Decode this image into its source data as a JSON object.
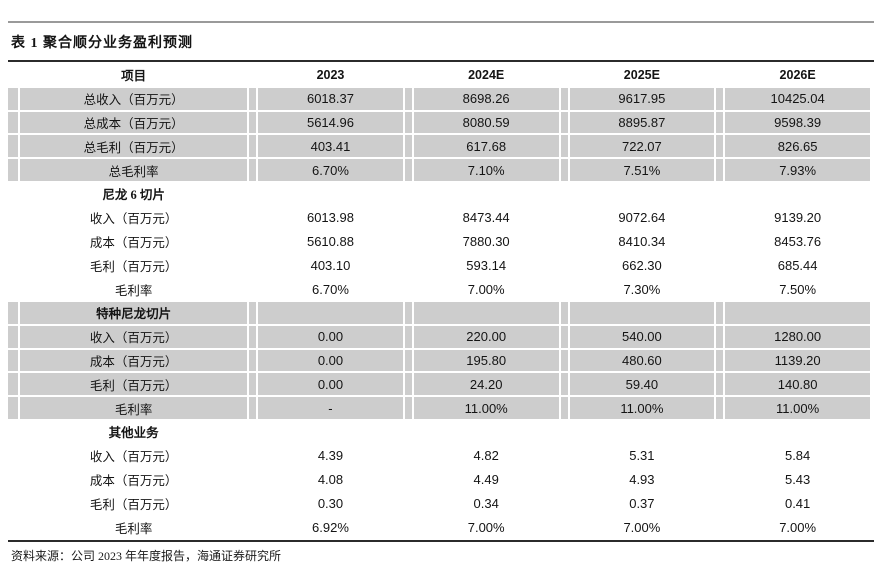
{
  "title": "表 1 聚合顺分业务盈利预测",
  "source_note": "资料来源：公司 2023 年年度报告，海通证券研究所",
  "colors": {
    "row_shade": "#cdcdcd",
    "top_rule": "#9a9a9a",
    "dark_rule": "#2b2b2b"
  },
  "table": {
    "header": {
      "item": "项目",
      "years": [
        "2023",
        "2024E",
        "2025E",
        "2026E"
      ]
    },
    "sections": [
      {
        "name": "",
        "shaded": true,
        "rows": [
          {
            "label": "总收入（百万元）",
            "values": [
              "6018.37",
              "8698.26",
              "9617.95",
              "10425.04"
            ]
          },
          {
            "label": "总成本（百万元）",
            "values": [
              "5614.96",
              "8080.59",
              "8895.87",
              "9598.39"
            ]
          },
          {
            "label": "总毛利（百万元）",
            "values": [
              "403.41",
              "617.68",
              "722.07",
              "826.65"
            ]
          },
          {
            "label": "总毛利率",
            "values": [
              "6.70%",
              "7.10%",
              "7.51%",
              "7.93%"
            ]
          }
        ]
      },
      {
        "name": "尼龙 6 切片",
        "shaded": false,
        "rows": [
          {
            "label": "收入（百万元）",
            "values": [
              "6013.98",
              "8473.44",
              "9072.64",
              "9139.20"
            ]
          },
          {
            "label": "成本（百万元）",
            "values": [
              "5610.88",
              "7880.30",
              "8410.34",
              "8453.76"
            ]
          },
          {
            "label": "毛利（百万元）",
            "values": [
              "403.10",
              "593.14",
              "662.30",
              "685.44"
            ]
          },
          {
            "label": "毛利率",
            "values": [
              "6.70%",
              "7.00%",
              "7.30%",
              "7.50%"
            ]
          }
        ]
      },
      {
        "name": "特种尼龙切片",
        "shaded": true,
        "rows": [
          {
            "label": "收入（百万元）",
            "values": [
              "0.00",
              "220.00",
              "540.00",
              "1280.00"
            ]
          },
          {
            "label": "成本（百万元）",
            "values": [
              "0.00",
              "195.80",
              "480.60",
              "1139.20"
            ]
          },
          {
            "label": "毛利（百万元）",
            "values": [
              "0.00",
              "24.20",
              "59.40",
              "140.80"
            ]
          },
          {
            "label": "毛利率",
            "values": [
              "-",
              "11.00%",
              "11.00%",
              "11.00%"
            ]
          }
        ]
      },
      {
        "name": "其他业务",
        "shaded": false,
        "rows": [
          {
            "label": "收入（百万元）",
            "values": [
              "4.39",
              "4.82",
              "5.31",
              "5.84"
            ]
          },
          {
            "label": "成本（百万元）",
            "values": [
              "4.08",
              "4.49",
              "4.93",
              "5.43"
            ]
          },
          {
            "label": "毛利（百万元）",
            "values": [
              "0.30",
              "0.34",
              "0.37",
              "0.41"
            ]
          },
          {
            "label": "毛利率",
            "values": [
              "6.92%",
              "7.00%",
              "7.00%",
              "7.00%"
            ]
          }
        ]
      }
    ]
  }
}
